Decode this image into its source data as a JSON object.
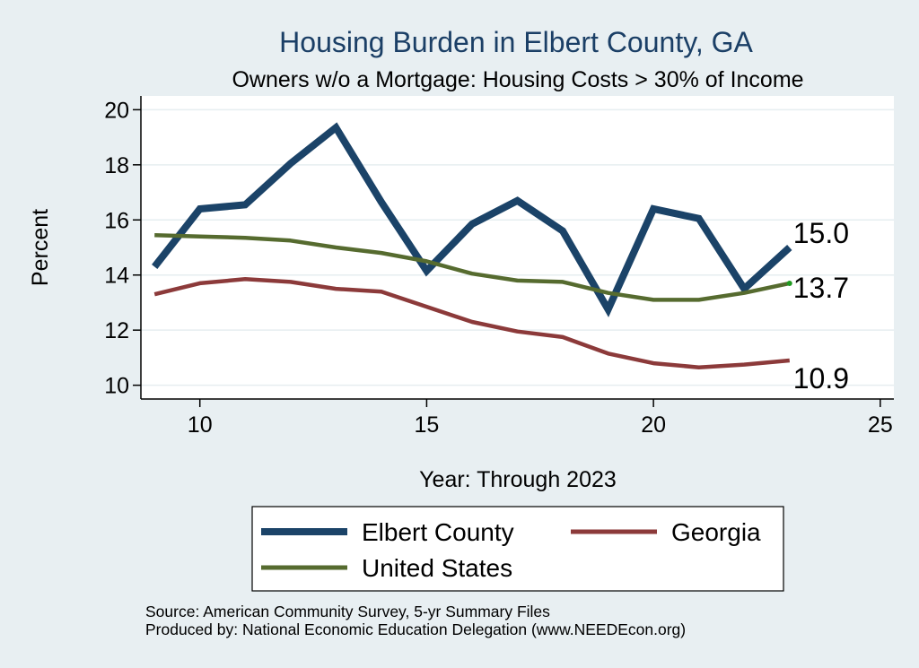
{
  "chart_data": {
    "type": "line",
    "title": "Housing Burden in Elbert County, GA",
    "subtitle": "Owners w/o a Mortgage: Housing Costs > 30% of Income",
    "xlabel": "Year: Through 2023",
    "ylabel": "Percent",
    "xlim": [
      8.7,
      25.3
    ],
    "ylim": [
      9.5,
      20.5
    ],
    "x_ticks": [
      10,
      15,
      20,
      25
    ],
    "y_ticks": [
      10,
      12,
      14,
      16,
      18,
      20
    ],
    "grid": true,
    "x": [
      9,
      10,
      11,
      12,
      13,
      14,
      15,
      16,
      17,
      18,
      19,
      20,
      21,
      22,
      23
    ],
    "series": [
      {
        "name": "Elbert County",
        "color": "#1b4368",
        "values": [
          14.3,
          16.4,
          16.55,
          18.05,
          19.35,
          16.65,
          14.15,
          15.85,
          16.7,
          15.6,
          12.75,
          16.4,
          16.05,
          13.5,
          15.0
        ],
        "end_label": "15.0"
      },
      {
        "name": "Georgia",
        "color": "#8c3a3a",
        "values": [
          13.3,
          13.7,
          13.85,
          13.75,
          13.5,
          13.4,
          12.85,
          12.3,
          11.95,
          11.75,
          11.15,
          10.8,
          10.65,
          10.75,
          10.9
        ],
        "end_label": "10.9"
      },
      {
        "name": "United States",
        "color": "#566b2f",
        "values": [
          15.45,
          15.4,
          15.35,
          15.25,
          15.0,
          14.8,
          14.5,
          14.05,
          13.8,
          13.75,
          13.35,
          13.1,
          13.1,
          13.35,
          13.7
        ],
        "end_label": "13.7"
      }
    ],
    "legend": {
      "position": "bottom",
      "entries": [
        "Elbert County",
        "Georgia",
        "United States"
      ]
    },
    "source_lines": [
      "Source: American Community Survey, 5-yr Summary Files",
      "Produced by: National Economic Education Delegation (www.NEEDEcon.org)"
    ]
  }
}
